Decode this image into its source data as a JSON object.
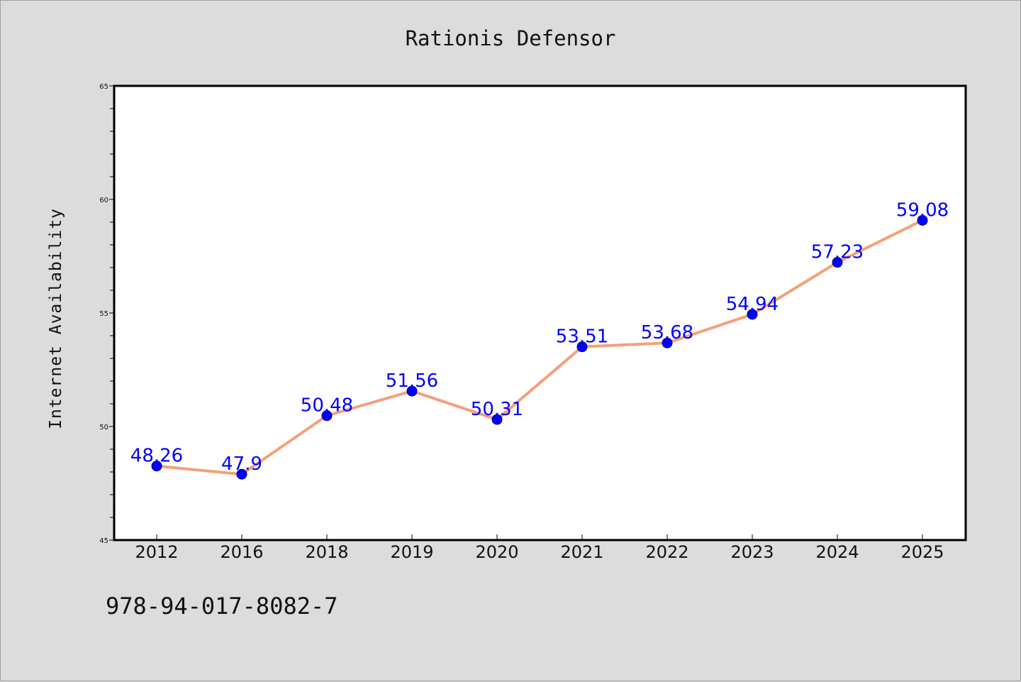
{
  "chart_data": {
    "type": "line",
    "title": "Rationis Defensor",
    "xlabel": "",
    "ylabel": "Internet Availability",
    "categories": [
      "2012",
      "2016",
      "2018",
      "2019",
      "2020",
      "2021",
      "2022",
      "2023",
      "2024",
      "2025"
    ],
    "series": [
      {
        "values": [
          48.26,
          47.9,
          50.48,
          51.56,
          50.31,
          53.51,
          53.68,
          54.94,
          57.23,
          59.08
        ],
        "data_labels": [
          "48.26",
          "47.9",
          "50.48",
          "51.56",
          "50.31",
          "53.51",
          "53.68",
          "54.94",
          "57.23",
          "59.08"
        ],
        "line_color": "#f4a07a",
        "marker_color": "#0000ff"
      }
    ],
    "ylim": [
      45,
      65
    ],
    "yticks": [
      "45",
      "50",
      "55",
      "60",
      "65"
    ],
    "grid": false,
    "legend": "none"
  },
  "footer_text": "978-94-017-8082-7",
  "colors": {
    "background": "#dcdcdc",
    "plot_background": "#ffffff",
    "label_color": "#0000ff"
  }
}
